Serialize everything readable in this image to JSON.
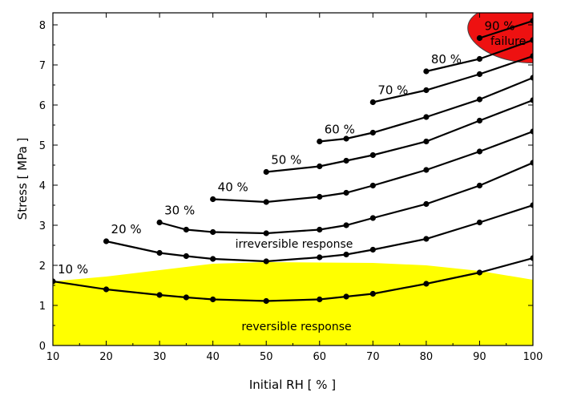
{
  "chart_data": {
    "type": "line",
    "xlabel": "Initial RH [ % ]",
    "ylabel": "Stress [ MPa ]",
    "xlim": [
      10,
      100
    ],
    "ylim": [
      0,
      8.3
    ],
    "xticks": [
      10,
      20,
      30,
      40,
      50,
      60,
      70,
      80,
      90,
      100
    ],
    "yticks": [
      0,
      1,
      2,
      3,
      4,
      5,
      6,
      7,
      8
    ],
    "grid": false,
    "legend": "none",
    "series": [
      {
        "name": "10 %",
        "x": [
          10,
          20,
          30,
          35,
          40,
          50,
          60,
          65,
          70,
          80,
          90,
          100
        ],
        "y": [
          1.6,
          1.4,
          1.26,
          1.2,
          1.15,
          1.11,
          1.15,
          1.22,
          1.29,
          1.54,
          1.82,
          2.18
        ]
      },
      {
        "name": "20 %",
        "x": [
          20,
          30,
          35,
          40,
          50,
          60,
          65,
          70,
          80,
          90,
          100
        ],
        "y": [
          2.6,
          2.31,
          2.23,
          2.16,
          2.1,
          2.2,
          2.27,
          2.39,
          2.66,
          3.07,
          3.5
        ]
      },
      {
        "name": "30 %",
        "x": [
          30,
          35,
          40,
          50,
          60,
          65,
          70,
          80,
          90,
          100
        ],
        "y": [
          3.07,
          2.89,
          2.83,
          2.8,
          2.89,
          3.0,
          3.18,
          3.53,
          3.99,
          4.56
        ]
      },
      {
        "name": "40 %",
        "x": [
          40,
          50,
          60,
          65,
          70,
          80,
          90,
          100
        ],
        "y": [
          3.65,
          3.58,
          3.71,
          3.81,
          3.99,
          4.38,
          4.84,
          5.34
        ]
      },
      {
        "name": "50 %",
        "x": [
          50,
          60,
          65,
          70,
          80,
          90,
          100
        ],
        "y": [
          4.33,
          4.47,
          4.61,
          4.75,
          5.09,
          5.61,
          6.12
        ]
      },
      {
        "name": "60 %",
        "x": [
          60,
          65,
          70,
          80,
          90,
          100
        ],
        "y": [
          5.09,
          5.16,
          5.31,
          5.7,
          6.14,
          6.68
        ]
      },
      {
        "name": "70 %",
        "x": [
          70,
          80,
          90,
          100
        ],
        "y": [
          6.07,
          6.37,
          6.77,
          7.22
        ]
      },
      {
        "name": "80 %",
        "x": [
          80,
          90,
          100
        ],
        "y": [
          6.84,
          7.15,
          7.62
        ]
      },
      {
        "name": "90 %",
        "x": [
          90,
          100
        ],
        "y": [
          7.67,
          8.1
        ]
      }
    ],
    "annotations": {
      "reversible": "reversible response",
      "irreversible": "irreversible response",
      "failure": "failure"
    },
    "region_colors": {
      "reversible": "#ffff00",
      "failure": "#ee1111"
    },
    "reversible_region_upper": {
      "x": [
        10,
        20,
        30,
        40,
        50,
        60,
        70,
        80,
        90,
        100
      ],
      "y": [
        1.6,
        1.72,
        1.88,
        2.04,
        2.08,
        2.07,
        2.06,
        2.0,
        1.86,
        1.64
      ]
    }
  }
}
